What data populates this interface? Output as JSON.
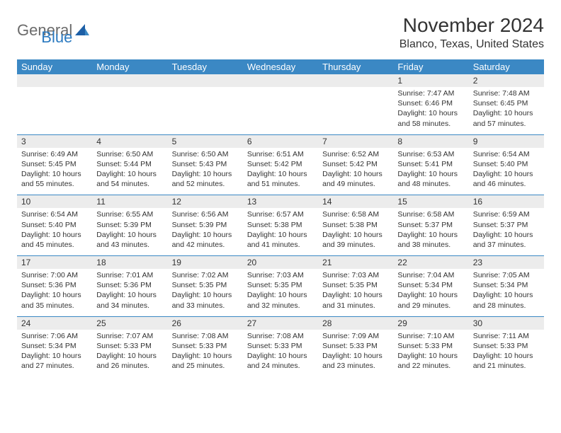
{
  "logo": {
    "part1": "General",
    "part2": "Blue"
  },
  "title": "November 2024",
  "location": "Blanco, Texas, United States",
  "colors": {
    "header_bg": "#3b88c4",
    "header_text": "#ffffff",
    "daynum_bg": "#ececec",
    "row_divider": "#3b88c4",
    "body_text": "#333333",
    "logo_gray": "#6b6b6b",
    "logo_blue": "#2b7ac0",
    "page_bg": "#ffffff"
  },
  "typography": {
    "title_fontsize": 28,
    "location_fontsize": 16,
    "dayheader_fontsize": 13,
    "daynum_fontsize": 12,
    "cell_fontsize": 10.5
  },
  "day_headers": [
    "Sunday",
    "Monday",
    "Tuesday",
    "Wednesday",
    "Thursday",
    "Friday",
    "Saturday"
  ],
  "weeks": [
    [
      {
        "num": "",
        "sunrise": "",
        "sunset": "",
        "daylight": ""
      },
      {
        "num": "",
        "sunrise": "",
        "sunset": "",
        "daylight": ""
      },
      {
        "num": "",
        "sunrise": "",
        "sunset": "",
        "daylight": ""
      },
      {
        "num": "",
        "sunrise": "",
        "sunset": "",
        "daylight": ""
      },
      {
        "num": "",
        "sunrise": "",
        "sunset": "",
        "daylight": ""
      },
      {
        "num": "1",
        "sunrise": "Sunrise: 7:47 AM",
        "sunset": "Sunset: 6:46 PM",
        "daylight": "Daylight: 10 hours and 58 minutes."
      },
      {
        "num": "2",
        "sunrise": "Sunrise: 7:48 AM",
        "sunset": "Sunset: 6:45 PM",
        "daylight": "Daylight: 10 hours and 57 minutes."
      }
    ],
    [
      {
        "num": "3",
        "sunrise": "Sunrise: 6:49 AM",
        "sunset": "Sunset: 5:45 PM",
        "daylight": "Daylight: 10 hours and 55 minutes."
      },
      {
        "num": "4",
        "sunrise": "Sunrise: 6:50 AM",
        "sunset": "Sunset: 5:44 PM",
        "daylight": "Daylight: 10 hours and 54 minutes."
      },
      {
        "num": "5",
        "sunrise": "Sunrise: 6:50 AM",
        "sunset": "Sunset: 5:43 PM",
        "daylight": "Daylight: 10 hours and 52 minutes."
      },
      {
        "num": "6",
        "sunrise": "Sunrise: 6:51 AM",
        "sunset": "Sunset: 5:42 PM",
        "daylight": "Daylight: 10 hours and 51 minutes."
      },
      {
        "num": "7",
        "sunrise": "Sunrise: 6:52 AM",
        "sunset": "Sunset: 5:42 PM",
        "daylight": "Daylight: 10 hours and 49 minutes."
      },
      {
        "num": "8",
        "sunrise": "Sunrise: 6:53 AM",
        "sunset": "Sunset: 5:41 PM",
        "daylight": "Daylight: 10 hours and 48 minutes."
      },
      {
        "num": "9",
        "sunrise": "Sunrise: 6:54 AM",
        "sunset": "Sunset: 5:40 PM",
        "daylight": "Daylight: 10 hours and 46 minutes."
      }
    ],
    [
      {
        "num": "10",
        "sunrise": "Sunrise: 6:54 AM",
        "sunset": "Sunset: 5:40 PM",
        "daylight": "Daylight: 10 hours and 45 minutes."
      },
      {
        "num": "11",
        "sunrise": "Sunrise: 6:55 AM",
        "sunset": "Sunset: 5:39 PM",
        "daylight": "Daylight: 10 hours and 43 minutes."
      },
      {
        "num": "12",
        "sunrise": "Sunrise: 6:56 AM",
        "sunset": "Sunset: 5:39 PM",
        "daylight": "Daylight: 10 hours and 42 minutes."
      },
      {
        "num": "13",
        "sunrise": "Sunrise: 6:57 AM",
        "sunset": "Sunset: 5:38 PM",
        "daylight": "Daylight: 10 hours and 41 minutes."
      },
      {
        "num": "14",
        "sunrise": "Sunrise: 6:58 AM",
        "sunset": "Sunset: 5:38 PM",
        "daylight": "Daylight: 10 hours and 39 minutes."
      },
      {
        "num": "15",
        "sunrise": "Sunrise: 6:58 AM",
        "sunset": "Sunset: 5:37 PM",
        "daylight": "Daylight: 10 hours and 38 minutes."
      },
      {
        "num": "16",
        "sunrise": "Sunrise: 6:59 AM",
        "sunset": "Sunset: 5:37 PM",
        "daylight": "Daylight: 10 hours and 37 minutes."
      }
    ],
    [
      {
        "num": "17",
        "sunrise": "Sunrise: 7:00 AM",
        "sunset": "Sunset: 5:36 PM",
        "daylight": "Daylight: 10 hours and 35 minutes."
      },
      {
        "num": "18",
        "sunrise": "Sunrise: 7:01 AM",
        "sunset": "Sunset: 5:36 PM",
        "daylight": "Daylight: 10 hours and 34 minutes."
      },
      {
        "num": "19",
        "sunrise": "Sunrise: 7:02 AM",
        "sunset": "Sunset: 5:35 PM",
        "daylight": "Daylight: 10 hours and 33 minutes."
      },
      {
        "num": "20",
        "sunrise": "Sunrise: 7:03 AM",
        "sunset": "Sunset: 5:35 PM",
        "daylight": "Daylight: 10 hours and 32 minutes."
      },
      {
        "num": "21",
        "sunrise": "Sunrise: 7:03 AM",
        "sunset": "Sunset: 5:35 PM",
        "daylight": "Daylight: 10 hours and 31 minutes."
      },
      {
        "num": "22",
        "sunrise": "Sunrise: 7:04 AM",
        "sunset": "Sunset: 5:34 PM",
        "daylight": "Daylight: 10 hours and 29 minutes."
      },
      {
        "num": "23",
        "sunrise": "Sunrise: 7:05 AM",
        "sunset": "Sunset: 5:34 PM",
        "daylight": "Daylight: 10 hours and 28 minutes."
      }
    ],
    [
      {
        "num": "24",
        "sunrise": "Sunrise: 7:06 AM",
        "sunset": "Sunset: 5:34 PM",
        "daylight": "Daylight: 10 hours and 27 minutes."
      },
      {
        "num": "25",
        "sunrise": "Sunrise: 7:07 AM",
        "sunset": "Sunset: 5:33 PM",
        "daylight": "Daylight: 10 hours and 26 minutes."
      },
      {
        "num": "26",
        "sunrise": "Sunrise: 7:08 AM",
        "sunset": "Sunset: 5:33 PM",
        "daylight": "Daylight: 10 hours and 25 minutes."
      },
      {
        "num": "27",
        "sunrise": "Sunrise: 7:08 AM",
        "sunset": "Sunset: 5:33 PM",
        "daylight": "Daylight: 10 hours and 24 minutes."
      },
      {
        "num": "28",
        "sunrise": "Sunrise: 7:09 AM",
        "sunset": "Sunset: 5:33 PM",
        "daylight": "Daylight: 10 hours and 23 minutes."
      },
      {
        "num": "29",
        "sunrise": "Sunrise: 7:10 AM",
        "sunset": "Sunset: 5:33 PM",
        "daylight": "Daylight: 10 hours and 22 minutes."
      },
      {
        "num": "30",
        "sunrise": "Sunrise: 7:11 AM",
        "sunset": "Sunset: 5:33 PM",
        "daylight": "Daylight: 10 hours and 21 minutes."
      }
    ]
  ]
}
